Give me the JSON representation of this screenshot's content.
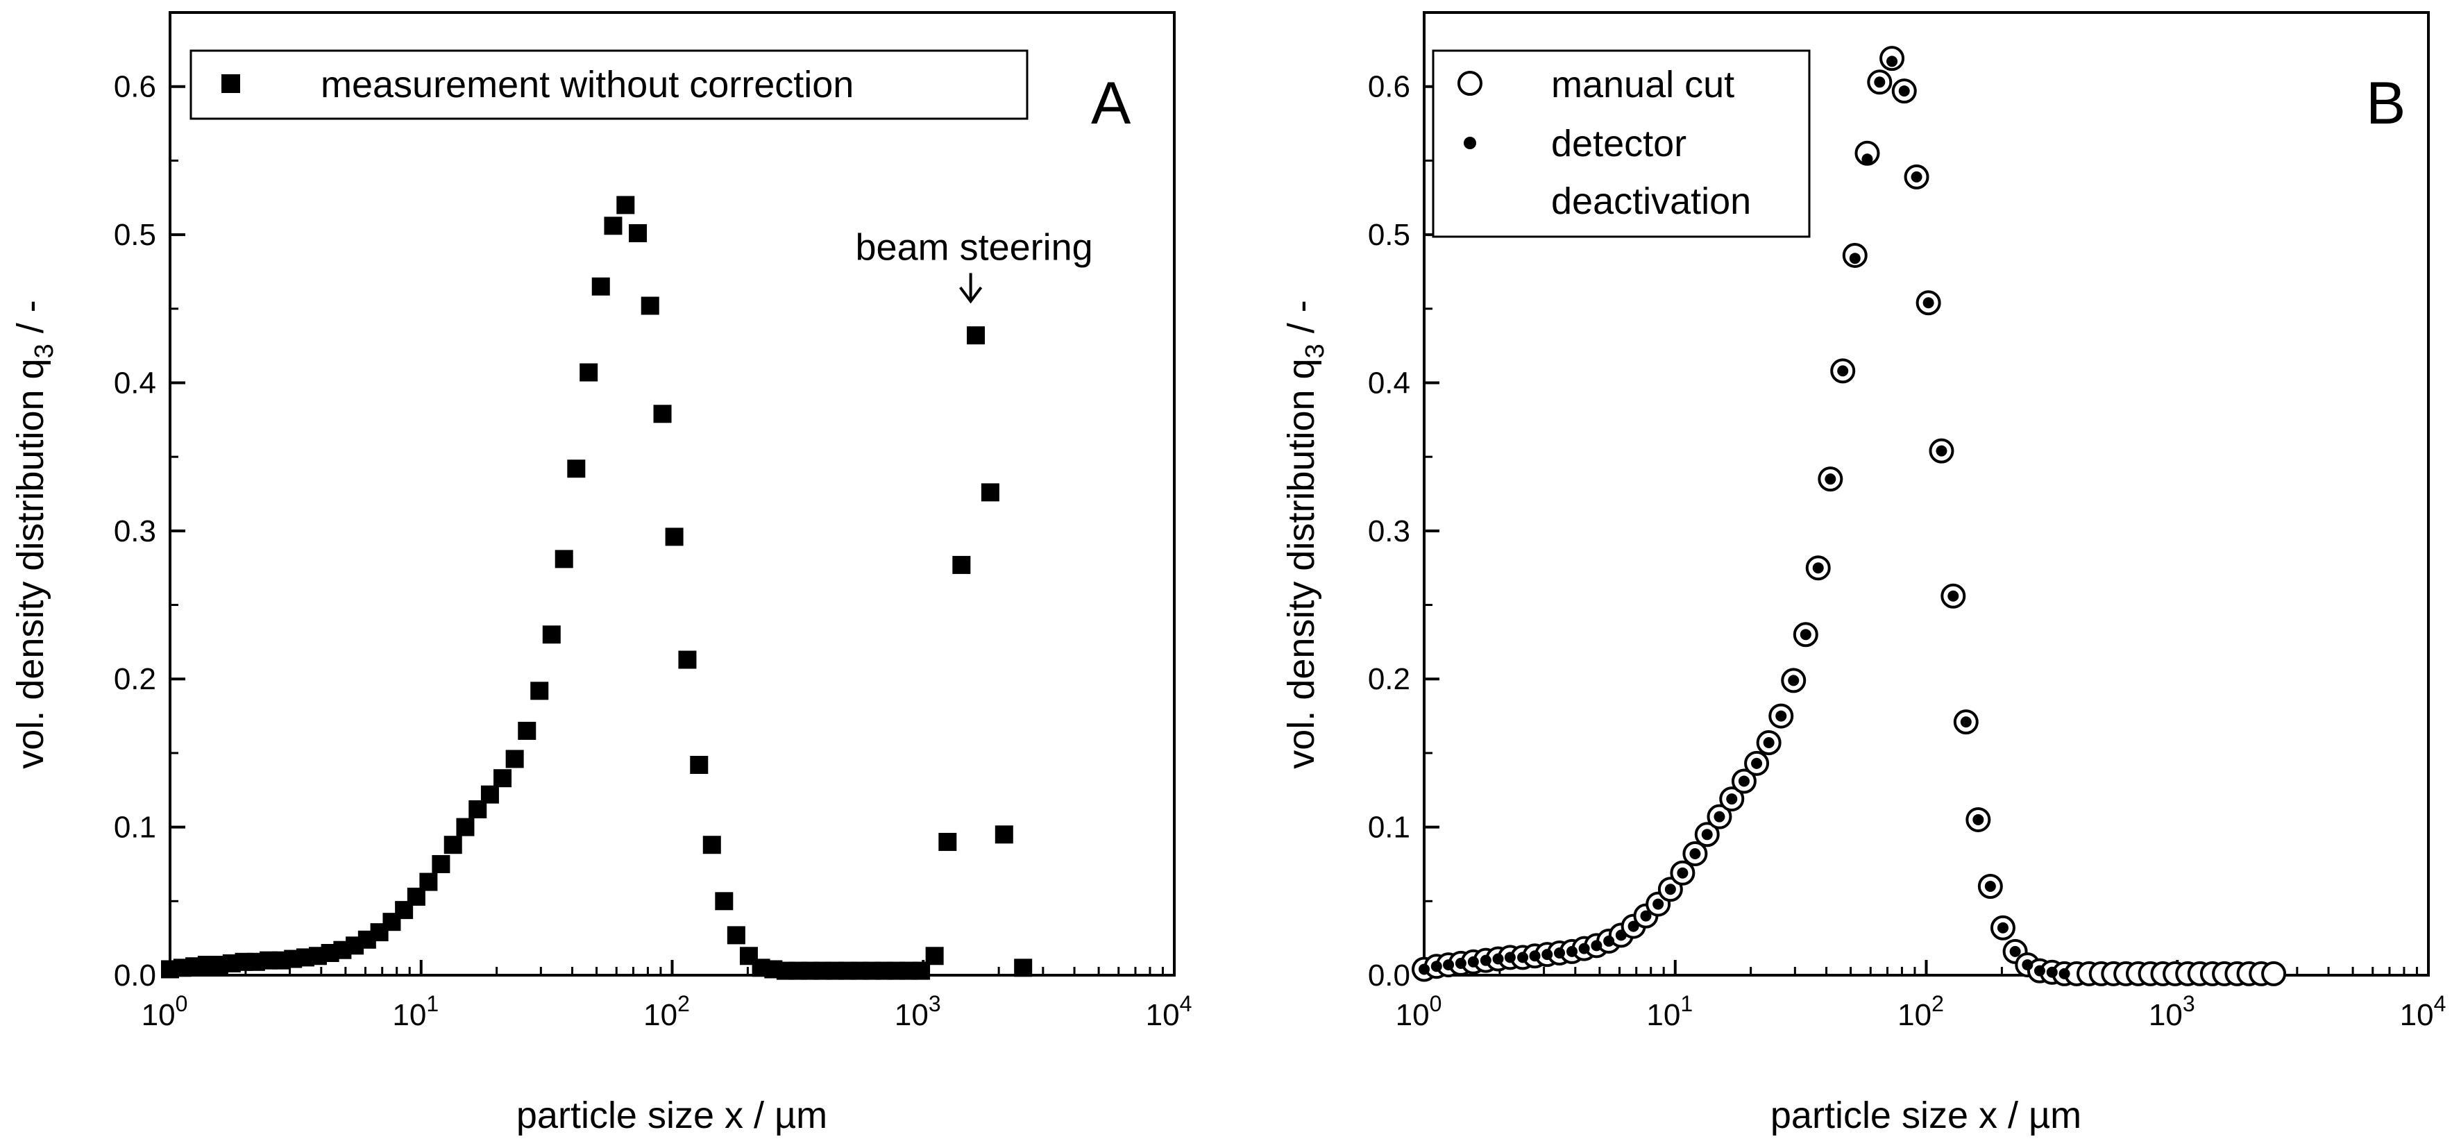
{
  "chart_data": [
    {
      "panel_label": "A",
      "type": "scatter",
      "xscale": "log",
      "xlim": [
        1,
        10000
      ],
      "ylim": [
        0.0,
        0.65
      ],
      "xlabel": "particle size x / µm",
      "ylabel": "vol. density distribution q3 / -",
      "ylabel_main": "vol. density distribution q",
      "ylabel_sub": "3",
      "ylabel_tail": " / -",
      "x_tick_labels": [
        {
          "base": "10",
          "exp": "0"
        },
        {
          "base": "10",
          "exp": "1"
        },
        {
          "base": "10",
          "exp": "2"
        },
        {
          "base": "10",
          "exp": "3"
        },
        {
          "base": "10",
          "exp": "4"
        }
      ],
      "x_ticks": [
        1,
        10,
        100,
        1000,
        10000
      ],
      "y_tick_labels": [
        "0.0",
        "0.1",
        "0.2",
        "0.3",
        "0.4",
        "0.5",
        "0.6"
      ],
      "y_ticks": [
        0.0,
        0.1,
        0.2,
        0.3,
        0.4,
        0.5,
        0.6
      ],
      "legend_position": "top-left",
      "annotation": {
        "text": "beam steering",
        "x": 1700,
        "y": 0.49,
        "arrow_to_y": 0.455
      },
      "series": [
        {
          "name": "measurement without correction",
          "marker": "filled-square",
          "x": [
            1.0,
            1.12,
            1.25,
            1.4,
            1.57,
            1.76,
            1.97,
            2.2,
            2.47,
            2.76,
            3.09,
            3.46,
            3.88,
            4.34,
            4.86,
            5.44,
            6.09,
            6.82,
            7.64,
            8.55,
            9.57,
            10.7,
            12.0,
            13.4,
            15.0,
            16.8,
            18.8,
            21.1,
            23.6,
            26.4,
            29.6,
            33.1,
            37.1,
            41.5,
            46.5,
            52.0,
            58.2,
            65.2,
            73.0,
            81.7,
            91.5,
            102,
            115,
            128,
            144,
            161,
            180,
            202,
            226,
            253,
            283,
            317,
            355,
            397,
            445,
            498,
            557,
            624,
            699,
            782,
            876,
            980,
            1110,
            1250,
            1420,
            1620,
            1850,
            2100,
            2500
          ],
          "y": [
            0.004,
            0.005,
            0.006,
            0.007,
            0.007,
            0.008,
            0.009,
            0.009,
            0.01,
            0.01,
            0.011,
            0.012,
            0.013,
            0.015,
            0.017,
            0.02,
            0.024,
            0.029,
            0.036,
            0.044,
            0.053,
            0.063,
            0.075,
            0.088,
            0.1,
            0.112,
            0.122,
            0.133,
            0.146,
            0.165,
            0.192,
            0.23,
            0.281,
            0.342,
            0.407,
            0.465,
            0.506,
            0.52,
            0.501,
            0.452,
            0.379,
            0.296,
            0.213,
            0.142,
            0.088,
            0.05,
            0.027,
            0.013,
            0.005,
            0.004,
            0.003,
            0.003,
            0.003,
            0.003,
            0.003,
            0.003,
            0.003,
            0.003,
            0.003,
            0.003,
            0.003,
            0.003,
            0.013,
            0.09,
            0.277,
            0.432,
            0.326,
            0.095,
            0.005
          ]
        }
      ]
    },
    {
      "panel_label": "B",
      "type": "scatter",
      "xscale": "log",
      "xlim": [
        1,
        10000
      ],
      "ylim": [
        0.0,
        0.65
      ],
      "xlabel": "particle size x / µm",
      "ylabel": "vol. density distribution q3 / -",
      "ylabel_main": "vol. density distribution q",
      "ylabel_sub": "3",
      "ylabel_tail": " / -",
      "x_tick_labels": [
        {
          "base": "10",
          "exp": "0"
        },
        {
          "base": "10",
          "exp": "1"
        },
        {
          "base": "10",
          "exp": "2"
        },
        {
          "base": "10",
          "exp": "3"
        },
        {
          "base": "10",
          "exp": "4"
        }
      ],
      "x_ticks": [
        1,
        10,
        100,
        1000,
        10000
      ],
      "y_tick_labels": [
        "0.0",
        "0.1",
        "0.2",
        "0.3",
        "0.4",
        "0.5",
        "0.6"
      ],
      "y_ticks": [
        0.0,
        0.1,
        0.2,
        0.3,
        0.4,
        0.5,
        0.6
      ],
      "legend_position": "top-left",
      "series": [
        {
          "name": "manual cut",
          "marker": "open-circle",
          "x": [
            1.0,
            1.12,
            1.25,
            1.4,
            1.57,
            1.76,
            1.97,
            2.2,
            2.47,
            2.76,
            3.09,
            3.46,
            3.88,
            4.34,
            4.86,
            5.44,
            6.09,
            6.82,
            7.64,
            8.55,
            9.57,
            10.7,
            12.0,
            13.4,
            15.0,
            16.8,
            18.8,
            21.1,
            23.6,
            26.4,
            29.6,
            33.1,
            37.1,
            41.5,
            46.5,
            52.0,
            58.2,
            65.2,
            73.0,
            81.7,
            91.5,
            102,
            115,
            128,
            144,
            161,
            180,
            202,
            226,
            253,
            283,
            317,
            355,
            397,
            445,
            498,
            557,
            624,
            699,
            782,
            876,
            980,
            1100,
            1230,
            1380,
            1540,
            1730,
            1930,
            2160,
            2420
          ],
          "y": [
            0.004,
            0.006,
            0.007,
            0.008,
            0.009,
            0.01,
            0.011,
            0.012,
            0.012,
            0.013,
            0.014,
            0.015,
            0.016,
            0.018,
            0.02,
            0.023,
            0.027,
            0.033,
            0.04,
            0.048,
            0.058,
            0.069,
            0.082,
            0.095,
            0.107,
            0.119,
            0.131,
            0.143,
            0.157,
            0.175,
            0.199,
            0.23,
            0.275,
            0.335,
            0.408,
            0.486,
            0.555,
            0.603,
            0.619,
            0.597,
            0.539,
            0.454,
            0.354,
            0.256,
            0.171,
            0.105,
            0.06,
            0.032,
            0.016,
            0.007,
            0.003,
            0.002,
            0.001,
            0.001,
            0.001,
            0.001,
            0.001,
            0.001,
            0.001,
            0.001,
            0.001,
            0.001,
            0.001,
            0.001,
            0.001,
            0.001,
            0.001,
            0.001,
            0.001,
            0.001
          ]
        },
        {
          "name": "detector deactivation",
          "legend_lines": [
            "detector",
            "deactivation"
          ],
          "marker": "filled-dot",
          "x": [
            1.0,
            1.12,
            1.25,
            1.4,
            1.57,
            1.76,
            1.97,
            2.2,
            2.47,
            2.76,
            3.09,
            3.46,
            3.88,
            4.34,
            4.86,
            5.44,
            6.09,
            6.82,
            7.64,
            8.55,
            9.57,
            10.7,
            12.0,
            13.4,
            15.0,
            16.8,
            18.8,
            21.1,
            23.6,
            26.4,
            29.6,
            33.1,
            37.1,
            41.5,
            46.5,
            52.0,
            58.2,
            65.2,
            73.0,
            81.7,
            91.5,
            102,
            115,
            128,
            144,
            161,
            180,
            202,
            226,
            253,
            283,
            317,
            355
          ],
          "y": [
            0.004,
            0.006,
            0.007,
            0.008,
            0.009,
            0.01,
            0.011,
            0.012,
            0.012,
            0.013,
            0.014,
            0.015,
            0.016,
            0.018,
            0.02,
            0.023,
            0.027,
            0.033,
            0.04,
            0.048,
            0.058,
            0.069,
            0.082,
            0.095,
            0.107,
            0.119,
            0.131,
            0.143,
            0.157,
            0.175,
            0.199,
            0.23,
            0.275,
            0.335,
            0.408,
            0.484,
            0.551,
            0.603,
            0.617,
            0.597,
            0.539,
            0.454,
            0.354,
            0.256,
            0.171,
            0.105,
            0.06,
            0.032,
            0.016,
            0.007,
            0.003,
            0.002,
            0.001
          ]
        }
      ]
    }
  ]
}
